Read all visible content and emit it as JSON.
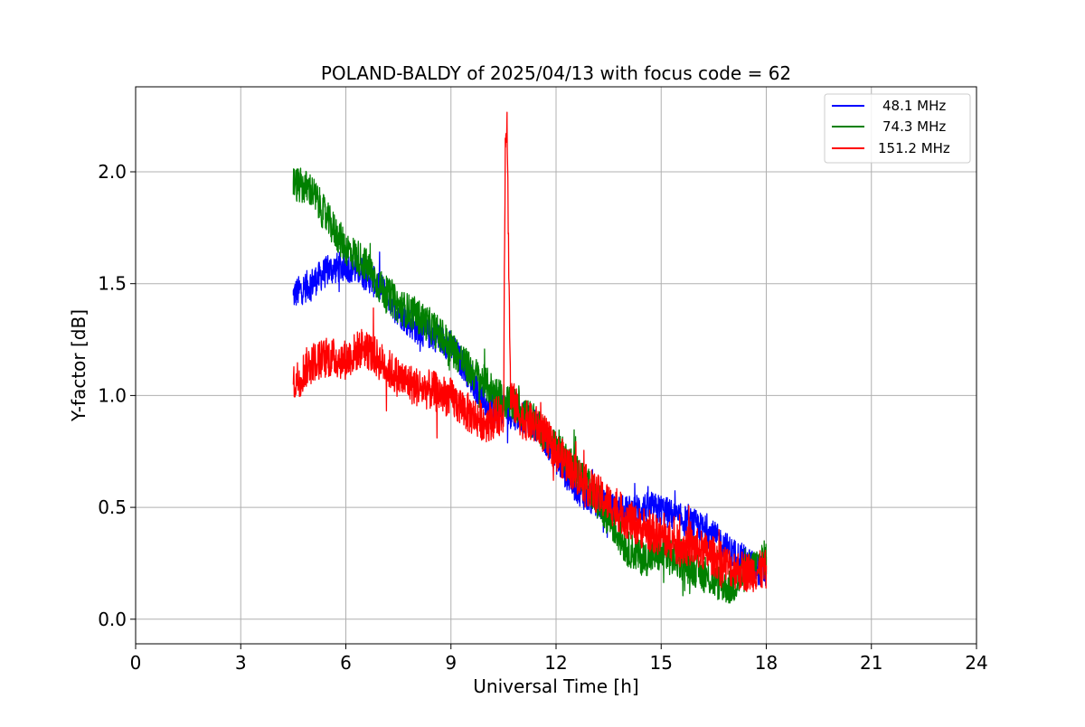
{
  "chart_data": {
    "type": "line",
    "title": "POLAND-BALDY of 2025/04/13 with focus code = 62",
    "xlabel": "Universal Time [h]",
    "ylabel": "Y-factor [dB]",
    "xlim": [
      0,
      24
    ],
    "ylim": [
      -0.11,
      2.38
    ],
    "xticks": [
      0,
      3,
      6,
      9,
      12,
      15,
      18,
      21,
      24
    ],
    "xtick_labels": [
      "0",
      "3",
      "6",
      "9",
      "12",
      "15",
      "18",
      "21",
      "24"
    ],
    "yticks": [
      0.0,
      0.5,
      1.0,
      1.5,
      2.0
    ],
    "ytick_labels": [
      "0.0",
      "0.5",
      "1.0",
      "1.5",
      "2.0"
    ],
    "grid": true,
    "legend_position": "top-right",
    "series": [
      {
        "name": "48.1 MHz",
        "color": "#0000ff",
        "noise": 0.07,
        "x": [
          4.5,
          5.0,
          5.5,
          6.0,
          6.5,
          7.0,
          7.5,
          8.0,
          8.5,
          9.0,
          9.5,
          10.0,
          10.5,
          11.0,
          11.5,
          12.0,
          12.5,
          13.0,
          13.5,
          14.0,
          14.5,
          15.0,
          15.5,
          16.0,
          16.5,
          17.0,
          17.5,
          18.0
        ],
        "y": [
          1.45,
          1.5,
          1.56,
          1.58,
          1.55,
          1.48,
          1.38,
          1.3,
          1.27,
          1.22,
          1.1,
          0.96,
          0.93,
          0.91,
          0.86,
          0.72,
          0.6,
          0.53,
          0.5,
          0.48,
          0.5,
          0.49,
          0.45,
          0.42,
          0.37,
          0.3,
          0.25,
          0.2
        ]
      },
      {
        "name": "74.3 MHz",
        "color": "#008000",
        "noise": 0.08,
        "x": [
          4.5,
          5.0,
          5.5,
          6.0,
          6.5,
          7.0,
          7.5,
          8.0,
          8.5,
          9.0,
          9.5,
          10.0,
          10.5,
          11.0,
          11.5,
          12.0,
          12.5,
          13.0,
          13.5,
          14.0,
          14.5,
          15.0,
          15.5,
          16.0,
          16.5,
          17.0,
          17.5,
          18.0
        ],
        "y": [
          1.95,
          1.92,
          1.78,
          1.66,
          1.6,
          1.48,
          1.4,
          1.36,
          1.3,
          1.22,
          1.12,
          1.05,
          0.98,
          0.94,
          0.86,
          0.77,
          0.68,
          0.58,
          0.45,
          0.32,
          0.27,
          0.29,
          0.26,
          0.22,
          0.17,
          0.14,
          0.22,
          0.28
        ]
      },
      {
        "name": "151.2 MHz",
        "color": "#ff0000",
        "noise": 0.09,
        "x": [
          4.5,
          5.0,
          5.5,
          6.0,
          6.5,
          7.0,
          7.5,
          8.0,
          8.5,
          9.0,
          9.5,
          10.0,
          10.5,
          10.55,
          10.6,
          10.7,
          11.0,
          11.5,
          12.0,
          12.5,
          13.0,
          13.5,
          14.0,
          14.5,
          15.0,
          15.5,
          16.0,
          16.5,
          17.0,
          17.5,
          18.0
        ],
        "y": [
          1.05,
          1.15,
          1.17,
          1.16,
          1.22,
          1.15,
          1.08,
          1.04,
          1.02,
          0.99,
          0.92,
          0.88,
          0.92,
          2.15,
          2.22,
          1.0,
          0.9,
          0.86,
          0.75,
          0.66,
          0.58,
          0.52,
          0.45,
          0.4,
          0.37,
          0.33,
          0.32,
          0.28,
          0.23,
          0.21,
          0.22
        ]
      }
    ]
  }
}
